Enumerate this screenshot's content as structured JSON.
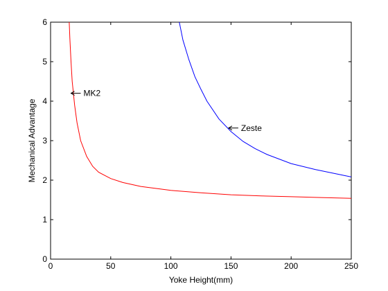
{
  "chart_data": {
    "type": "line",
    "title": "",
    "xlabel": "Yoke Height(mm)",
    "ylabel": "Mechanical Advantage",
    "xlim": [
      0,
      250
    ],
    "ylim": [
      0,
      6
    ],
    "xticks": [
      0,
      50,
      100,
      150,
      200,
      250
    ],
    "yticks": [
      0,
      1,
      2,
      3,
      4,
      5,
      6
    ],
    "grid": false,
    "legend": "none",
    "series": [
      {
        "name": "MK2",
        "color": "#ff0000",
        "x": [
          15.5,
          16,
          17,
          18,
          20,
          22,
          25,
          30,
          35,
          40,
          50,
          60,
          75,
          100,
          125,
          150,
          175,
          200,
          225,
          250
        ],
        "y": [
          6.0,
          5.6,
          5.0,
          4.5,
          3.9,
          3.45,
          3.0,
          2.6,
          2.35,
          2.2,
          2.04,
          1.94,
          1.84,
          1.74,
          1.68,
          1.63,
          1.6,
          1.58,
          1.56,
          1.54
        ]
      },
      {
        "name": "Zeste",
        "color": "#0000ff",
        "x": [
          107,
          110,
          115,
          120,
          125,
          130,
          140,
          150,
          160,
          170,
          180,
          200,
          220,
          250
        ],
        "y": [
          6.0,
          5.55,
          5.05,
          4.62,
          4.3,
          4.0,
          3.55,
          3.23,
          2.98,
          2.8,
          2.65,
          2.42,
          2.27,
          2.08
        ]
      }
    ],
    "annotations": [
      {
        "text": "MK2",
        "x": 17,
        "y": 4.2,
        "arrow": true
      },
      {
        "text": "Zeste",
        "x": 148,
        "y": 3.32,
        "arrow": true
      }
    ]
  }
}
